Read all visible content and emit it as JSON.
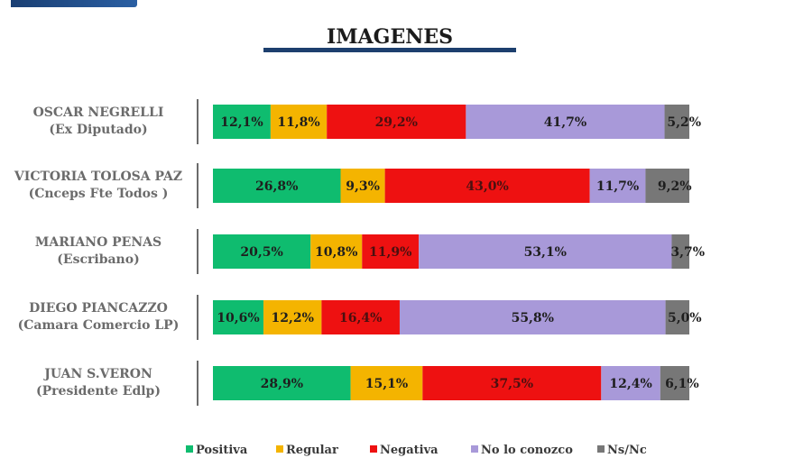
{
  "header": {
    "title": "IMAGENES"
  },
  "colors": {
    "positiva": "#0fbc6f",
    "regular": "#f4b400",
    "negativa": "#ee1111",
    "no_lo_conozco": "#a899d9",
    "ns_nc": "#777777"
  },
  "legend": {
    "items": [
      {
        "key": "positiva",
        "label": "Positiva"
      },
      {
        "key": "regular",
        "label": "Regular"
      },
      {
        "key": "negativa",
        "label": "Negativa"
      },
      {
        "key": "no_lo_conozco",
        "label": "No lo conozco"
      },
      {
        "key": "ns_nc",
        "label": "Ns/Nc"
      }
    ]
  },
  "chart_data": {
    "type": "bar",
    "orientation": "horizontal",
    "stacked": true,
    "title": "IMAGENES",
    "categories": [
      {
        "name": "OSCAR NEGRELLI",
        "subtitle": "(Ex Diputado)"
      },
      {
        "name": "VICTORIA TOLOSA PAZ",
        "subtitle": "(Cnceps Fte Todos )"
      },
      {
        "name": "MARIANO PENAS",
        "subtitle": "(Escribano)"
      },
      {
        "name": "DIEGO PIANCAZZO",
        "subtitle": "(Camara Comercio LP)"
      },
      {
        "name": "JUAN S.VERON",
        "subtitle": "(Presidente Edlp)"
      }
    ],
    "series": [
      {
        "name": "Positiva",
        "key": "positiva",
        "values": [
          12.1,
          26.8,
          20.5,
          10.6,
          28.9
        ],
        "labels": [
          "12,1%",
          "26,8%",
          "20,5%",
          "10,6%",
          "28,9%"
        ]
      },
      {
        "name": "Regular",
        "key": "regular",
        "values": [
          11.8,
          9.3,
          10.8,
          12.2,
          15.1
        ],
        "labels": [
          "11,8%",
          "9,3%",
          "10,8%",
          "12,2%",
          "15,1%"
        ]
      },
      {
        "name": "Negativa",
        "key": "negativa",
        "values": [
          29.2,
          43.0,
          11.9,
          16.4,
          37.5
        ],
        "labels": [
          "29,2%",
          "43,0%",
          "11,9%",
          "16,4%",
          "37,5%"
        ]
      },
      {
        "name": "No lo conozco",
        "key": "no_lo_conozco",
        "values": [
          41.7,
          11.7,
          53.1,
          55.8,
          12.4
        ],
        "labels": [
          "41,7%",
          "11,7%",
          "53,1%",
          "55,8%",
          "12,4%"
        ]
      },
      {
        "name": "Ns/Nc",
        "key": "ns_nc",
        "values": [
          5.2,
          9.2,
          3.7,
          5.0,
          6.1
        ],
        "labels": [
          "5,2%",
          "9,2%",
          "3,7%",
          "5,0%",
          "6,1%"
        ]
      }
    ],
    "xlim": [
      0,
      100
    ],
    "grid": false,
    "legend_position": "bottom"
  }
}
